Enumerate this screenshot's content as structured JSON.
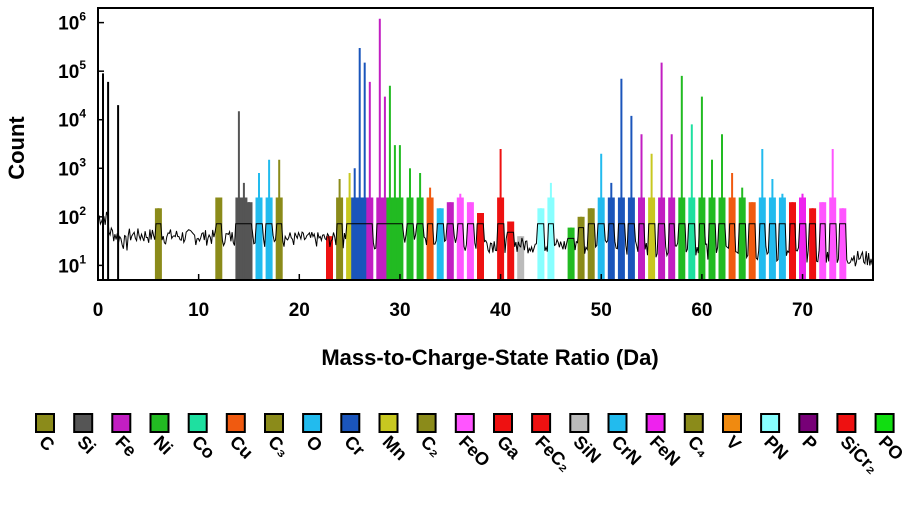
{
  "chart_data": {
    "type": "bar",
    "title": "",
    "xlabel": "Mass-to-Charge-State Ratio (Da)",
    "ylabel": "Count",
    "x_ticks": [
      "0",
      "10",
      "20",
      "30",
      "40",
      "50",
      "60",
      "70"
    ],
    "xlim": [
      0,
      77
    ],
    "y_scale": "log",
    "ylim": [
      5,
      2000000
    ],
    "y_ticks": [
      {
        "value": 10,
        "base": "10",
        "exp": "1"
      },
      {
        "value": 100,
        "base": "10",
        "exp": "2"
      },
      {
        "value": 1000,
        "base": "10",
        "exp": "3"
      },
      {
        "value": 10000,
        "base": "10",
        "exp": "4"
      },
      {
        "value": 100000,
        "base": "10",
        "exp": "5"
      },
      {
        "value": 1000000,
        "base": "10",
        "exp": "6"
      }
    ],
    "grid": false,
    "legend_position": "bottom",
    "background_line_color": "#000000",
    "legend": [
      {
        "label": "C",
        "color": "#8b8b1a"
      },
      {
        "label": "Si",
        "color": "#555555"
      },
      {
        "label": "Fe",
        "color": "#c21ec2"
      },
      {
        "label": "Ni",
        "color": "#22bb22"
      },
      {
        "label": "Co",
        "color": "#1ee0a0"
      },
      {
        "label": "Cu",
        "color": "#f05a10"
      },
      {
        "label": "C₃",
        "color": "#8b8b1a"
      },
      {
        "label": "O",
        "color": "#22bbee"
      },
      {
        "label": "Cr",
        "color": "#1a55bb"
      },
      {
        "label": "Mn",
        "color": "#c8c820"
      },
      {
        "label": "C₂",
        "color": "#8b8b1a"
      },
      {
        "label": "FeO",
        "color": "#ff55ff"
      },
      {
        "label": "Ga",
        "color": "#ee1111"
      },
      {
        "label": "FeC₂",
        "color": "#ee1111"
      },
      {
        "label": "SiN",
        "color": "#bbbbbb"
      },
      {
        "label": "CrN",
        "color": "#22bbee"
      },
      {
        "label": "FeN",
        "color": "#ee22ee"
      },
      {
        "label": "C₄",
        "color": "#8b8b1a"
      },
      {
        "label": "V",
        "color": "#f08a10"
      },
      {
        "label": "PN",
        "color": "#88ffff"
      },
      {
        "label": "P",
        "color": "#770077"
      },
      {
        "label": "SiCr₂",
        "color": "#ee1111"
      },
      {
        "label": "PO",
        "color": "#11dd11"
      }
    ],
    "peaks": [
      {
        "x": 0.5,
        "y": 90000,
        "species": "",
        "color": "#000000"
      },
      {
        "x": 1.0,
        "y": 60000,
        "species": "",
        "color": "#000000"
      },
      {
        "x": 2.0,
        "y": 20000,
        "species": "",
        "color": "#000000"
      },
      {
        "x": 6.0,
        "y": 150,
        "species": "C",
        "color": "#8b8b1a"
      },
      {
        "x": 12.0,
        "y": 250,
        "species": "C",
        "color": "#8b8b1a"
      },
      {
        "x": 14.0,
        "y": 15000,
        "species": "Si",
        "color": "#555555"
      },
      {
        "x": 14.5,
        "y": 500,
        "species": "Si",
        "color": "#555555"
      },
      {
        "x": 15.0,
        "y": 200,
        "species": "Si",
        "color": "#555555"
      },
      {
        "x": 16.0,
        "y": 800,
        "species": "O",
        "color": "#22bbee"
      },
      {
        "x": 17.0,
        "y": 1500,
        "species": "O",
        "color": "#22bbee"
      },
      {
        "x": 18.0,
        "y": 1500,
        "species": "C₃",
        "color": "#8b8b1a"
      },
      {
        "x": 23.0,
        "y": 40,
        "species": "Ga",
        "color": "#ee1111"
      },
      {
        "x": 24.0,
        "y": 600,
        "species": "C₂",
        "color": "#8b8b1a"
      },
      {
        "x": 25.0,
        "y": 800,
        "species": "Mn",
        "color": "#c8c820"
      },
      {
        "x": 25.5,
        "y": 1000,
        "species": "Cr",
        "color": "#1a55bb"
      },
      {
        "x": 26.0,
        "y": 300000,
        "species": "Cr",
        "color": "#1a55bb"
      },
      {
        "x": 26.5,
        "y": 150000,
        "species": "Cr",
        "color": "#1a55bb"
      },
      {
        "x": 27.0,
        "y": 60000,
        "species": "Fe",
        "color": "#c21ec2"
      },
      {
        "x": 28.0,
        "y": 1200000,
        "species": "Fe",
        "color": "#c21ec2"
      },
      {
        "x": 28.5,
        "y": 30000,
        "species": "Fe",
        "color": "#c21ec2"
      },
      {
        "x": 29.0,
        "y": 50000,
        "species": "Ni",
        "color": "#22bb22"
      },
      {
        "x": 29.5,
        "y": 3000,
        "species": "Ni",
        "color": "#22bb22"
      },
      {
        "x": 30.0,
        "y": 3000,
        "species": "Ni",
        "color": "#22bb22"
      },
      {
        "x": 31.0,
        "y": 1000,
        "species": "Ni",
        "color": "#22bb22"
      },
      {
        "x": 32.0,
        "y": 800,
        "species": "Ni",
        "color": "#22bb22"
      },
      {
        "x": 33.0,
        "y": 400,
        "species": "Cu",
        "color": "#f05a10"
      },
      {
        "x": 34.0,
        "y": 150,
        "species": "O",
        "color": "#22bbee"
      },
      {
        "x": 35.0,
        "y": 200,
        "species": "Fe",
        "color": "#c21ec2"
      },
      {
        "x": 36.0,
        "y": 300,
        "species": "FeO",
        "color": "#ff55ff"
      },
      {
        "x": 37.0,
        "y": 200,
        "species": "FeO",
        "color": "#ff55ff"
      },
      {
        "x": 38.0,
        "y": 120,
        "species": "Ga",
        "color": "#ee1111"
      },
      {
        "x": 40.0,
        "y": 2500,
        "species": "FeC₂",
        "color": "#ee1111"
      },
      {
        "x": 41.0,
        "y": 80,
        "species": "FeC₂",
        "color": "#ee1111"
      },
      {
        "x": 42.0,
        "y": 40,
        "species": "SiN",
        "color": "#bbbbbb"
      },
      {
        "x": 44.0,
        "y": 150,
        "species": "PN",
        "color": "#88ffff"
      },
      {
        "x": 45.0,
        "y": 500,
        "species": "PN",
        "color": "#88ffff"
      },
      {
        "x": 47.0,
        "y": 60,
        "species": "Ni",
        "color": "#22bb22"
      },
      {
        "x": 48.0,
        "y": 100,
        "species": "C₄",
        "color": "#8b8b1a"
      },
      {
        "x": 49.0,
        "y": 150,
        "species": "C₄",
        "color": "#8b8b1a"
      },
      {
        "x": 50.0,
        "y": 2000,
        "species": "CrN",
        "color": "#22bbee"
      },
      {
        "x": 51.0,
        "y": 500,
        "species": "Cr",
        "color": "#1a55bb"
      },
      {
        "x": 52.0,
        "y": 70000,
        "species": "Cr",
        "color": "#1a55bb"
      },
      {
        "x": 53.0,
        "y": 12000,
        "species": "Cr",
        "color": "#1a55bb"
      },
      {
        "x": 54.0,
        "y": 5000,
        "species": "Fe",
        "color": "#c21ec2"
      },
      {
        "x": 55.0,
        "y": 2000,
        "species": "Mn",
        "color": "#c8c820"
      },
      {
        "x": 56.0,
        "y": 150000,
        "species": "Fe",
        "color": "#c21ec2"
      },
      {
        "x": 57.0,
        "y": 5000,
        "species": "Fe",
        "color": "#c21ec2"
      },
      {
        "x": 58.0,
        "y": 80000,
        "species": "Ni",
        "color": "#22bb22"
      },
      {
        "x": 59.0,
        "y": 8000,
        "species": "Co",
        "color": "#1ee0a0"
      },
      {
        "x": 60.0,
        "y": 30000,
        "species": "Ni",
        "color": "#22bb22"
      },
      {
        "x": 61.0,
        "y": 1500,
        "species": "Ni",
        "color": "#22bb22"
      },
      {
        "x": 62.0,
        "y": 5000,
        "species": "Ni",
        "color": "#22bb22"
      },
      {
        "x": 63.0,
        "y": 800,
        "species": "Cu",
        "color": "#f05a10"
      },
      {
        "x": 64.0,
        "y": 400,
        "species": "Ni",
        "color": "#22bb22"
      },
      {
        "x": 65.0,
        "y": 200,
        "species": "Cu",
        "color": "#f05a10"
      },
      {
        "x": 66.0,
        "y": 2500,
        "species": "CrN",
        "color": "#22bbee"
      },
      {
        "x": 67.0,
        "y": 600,
        "species": "CrN",
        "color": "#22bbee"
      },
      {
        "x": 68.0,
        "y": 300,
        "species": "O",
        "color": "#22bbee"
      },
      {
        "x": 69.0,
        "y": 200,
        "species": "Ga",
        "color": "#ee1111"
      },
      {
        "x": 70.0,
        "y": 300,
        "species": "FeN",
        "color": "#ee22ee"
      },
      {
        "x": 71.0,
        "y": 150,
        "species": "Ga",
        "color": "#ee1111"
      },
      {
        "x": 72.0,
        "y": 200,
        "species": "FeO",
        "color": "#ff55ff"
      },
      {
        "x": 73.0,
        "y": 2500,
        "species": "FeO",
        "color": "#ff55ff"
      },
      {
        "x": 74.0,
        "y": 150,
        "species": "FeO",
        "color": "#ff55ff"
      }
    ]
  }
}
